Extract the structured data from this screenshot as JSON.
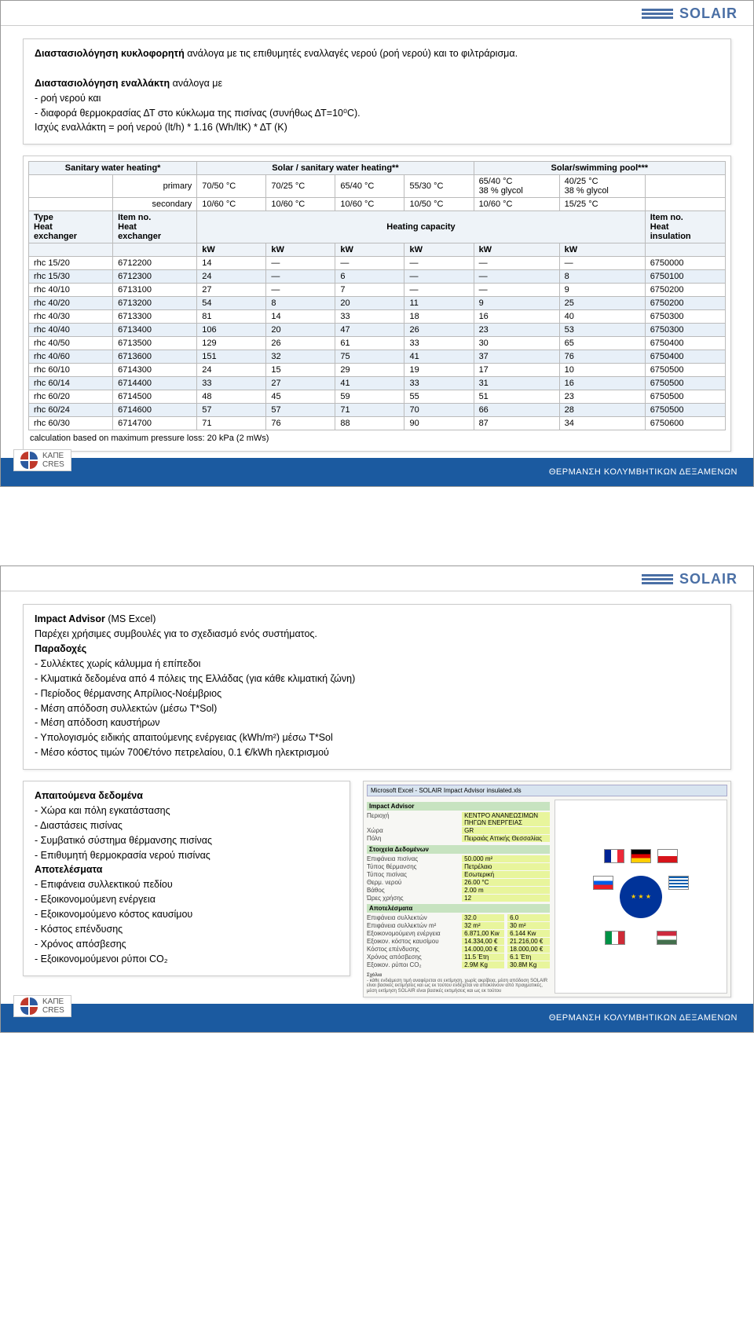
{
  "brand": {
    "name": "SOLAIR"
  },
  "footer": {
    "org_line1": "ΚΑΠΕ",
    "org_line2": "CRES",
    "title": "ΘΕΡΜΑΝΣΗ ΚΟΛΥΜΒΗΤΙΚΩΝ ΔΕΞΑΜΕΝΩΝ"
  },
  "slide1": {
    "box1": {
      "p1_a": "Διαστασιολόγηση κυκλοφορητή",
      "p1_b": " ανάλογα με τις επιθυμητές εναλλαγές νερού (ροή νερού) και το φιλτράρισμα.",
      "p2_a": "Διαστασιολόγηση εναλλάκτη",
      "p2_b": " ανάλογα με",
      "p3": "- ροή νερού και",
      "p4": "- διαφορά θερμοκρασίας ΔΤ στο κύκλωμα της πισίνας (συνήθως ΔΤ=10⁰C).",
      "p5": "Ισχύς εναλλάκτη = ροή νερού (lt/h) * 1.16 (Wh/ltK) * ΔΤ (K)"
    },
    "table": {
      "group1": "Sanitary water heating*",
      "group2": "Solar / sanitary water heating**",
      "group3": "Solar/swimming pool***",
      "row_primary": "primary",
      "row_secondary": "secondary",
      "col_head_type": "Type\nHeat\nexchanger",
      "col_head_item": "Item no.\nHeat\nexchanger",
      "col_head_capacity": "Heating capacity",
      "col_head_item_ins": "Item no.\nHeat\ninsulation",
      "kw": "kW",
      "primary_temps": [
        "70/50 °C",
        "70/25 °C",
        "65/40 °C",
        "55/30 °C",
        "65/40 °C\n38 % glycol",
        "40/25 °C\n38 % glycol"
      ],
      "secondary_temps": [
        "10/60 °C",
        "10/60 °C",
        "10/60 °C",
        "10/50 °C",
        "10/60 °C",
        "15/25 °C"
      ],
      "rows": [
        {
          "type": "rhc 15/20",
          "item": "6712200",
          "v": [
            "14",
            "—",
            "—",
            "—",
            "—",
            "—"
          ],
          "ins": "6750000",
          "alt": false
        },
        {
          "type": "rhc 15/30",
          "item": "6712300",
          "v": [
            "24",
            "—",
            "6",
            "—",
            "—",
            "8"
          ],
          "ins": "6750100",
          "alt": true
        },
        {
          "type": "rhc 40/10",
          "item": "6713100",
          "v": [
            "27",
            "—",
            "7",
            "—",
            "—",
            "9"
          ],
          "ins": "6750200",
          "alt": false
        },
        {
          "type": "rhc 40/20",
          "item": "6713200",
          "v": [
            "54",
            "8",
            "20",
            "11",
            "9",
            "25"
          ],
          "ins": "6750200",
          "alt": true
        },
        {
          "type": "rhc 40/30",
          "item": "6713300",
          "v": [
            "81",
            "14",
            "33",
            "18",
            "16",
            "40"
          ],
          "ins": "6750300",
          "alt": false
        },
        {
          "type": "rhc 40/40",
          "item": "6713400",
          "v": [
            "106",
            "20",
            "47",
            "26",
            "23",
            "53"
          ],
          "ins": "6750300",
          "alt": true
        },
        {
          "type": "rhc 40/50",
          "item": "6713500",
          "v": [
            "129",
            "26",
            "61",
            "33",
            "30",
            "65"
          ],
          "ins": "6750400",
          "alt": false
        },
        {
          "type": "rhc 40/60",
          "item": "6713600",
          "v": [
            "151",
            "32",
            "75",
            "41",
            "37",
            "76"
          ],
          "ins": "6750400",
          "alt": true
        },
        {
          "type": "rhc 60/10",
          "item": "6714300",
          "v": [
            "24",
            "15",
            "29",
            "19",
            "17",
            "10"
          ],
          "ins": "6750500",
          "alt": false
        },
        {
          "type": "rhc 60/14",
          "item": "6714400",
          "v": [
            "33",
            "27",
            "41",
            "33",
            "31",
            "16"
          ],
          "ins": "6750500",
          "alt": true
        },
        {
          "type": "rhc 60/20",
          "item": "6714500",
          "v": [
            "48",
            "45",
            "59",
            "55",
            "51",
            "23"
          ],
          "ins": "6750500",
          "alt": false
        },
        {
          "type": "rhc 60/24",
          "item": "6714600",
          "v": [
            "57",
            "57",
            "71",
            "70",
            "66",
            "28"
          ],
          "ins": "6750500",
          "alt": true
        },
        {
          "type": "rhc 60/30",
          "item": "6714700",
          "v": [
            "71",
            "76",
            "88",
            "90",
            "87",
            "34"
          ],
          "ins": "6750600",
          "alt": false
        }
      ],
      "note": "calculation based on maximum pressure loss: 20 kPa (2 mWs)"
    }
  },
  "slide2": {
    "box1": {
      "title_a": "Impact Advisor",
      "title_b": " (MS Excel)",
      "p1": "Παρέχει χρήσιμες συμβουλές για το σχεδιασμό ενός συστήματος.",
      "h2": "Παραδοχές",
      "items": [
        "- Συλλέκτες χωρίς κάλυμμα ή επίπεδοι",
        "- Κλιματικά δεδομένα από 4 πόλεις της Ελλάδας (για κάθε κλιματική ζώνη)",
        "- Περίοδος θέρμανσης Απρίλιος-Νοέμβριος",
        "- Μέση απόδοση συλλεκτών (μέσω T*Sol)",
        "- Μέση απόδοση καυστήρων",
        "- Υπολογισμός ειδικής απαιτούμενης ενέργειας (kWh/m²) μέσω T*Sol",
        "- Μέσο κόστος τιμών 700€/τόνο πετρελαίου, 0.1 €/kWh ηλεκτρισμού"
      ]
    },
    "box2": {
      "h1": "Απαιτούμενα δεδομένα",
      "req": [
        "- Χώρα και πόλη εγκατάστασης",
        "- Διαστάσεις πισίνας",
        "- Συμβατικό σύστημα θέρμανσης πισίνας",
        "- Επιθυμητή θερμοκρασία νερού πισίνας"
      ],
      "h2": "Αποτελέσματα",
      "res": [
        "- Επιφάνεια συλλεκτικού πεδίου",
        "- Εξοικονομούμενη ενέργεια",
        "- Εξοικονομούμενο κόστος καυσίμου",
        "- Κόστος επένδυσης",
        "- Χρόνος απόσβεσης",
        "- Εξοικονομούμενοι ρύποι CO₂"
      ]
    },
    "screenshot": {
      "toolbar": "Microsoft Excel - SOLAIR Impact Advisor insulated.xls",
      "section1": "Impact Advisor",
      "rows1": [
        {
          "lbl": "Περιοχή",
          "val": "ΚΕΝΤΡΟ ΑΝΑΝΕΩΣΙΜΩΝ ΠΗΓΩΝ ΕΝΕΡΓΕΙΑΣ"
        },
        {
          "lbl": "Χώρα",
          "val": "GR"
        },
        {
          "lbl": "Πόλη",
          "val": "Πειραιάς Αττικής Θεσσαλίας"
        },
        {
          "lbl": "",
          "val": ""
        }
      ],
      "section2": "Στοιχεία Δεδομένων",
      "rows2": [
        {
          "lbl": "Επιφάνεια πισίνας",
          "val": "50.000 m²"
        },
        {
          "lbl": "Τύπος θέρμανσης",
          "val": "Πετρέλαιο"
        },
        {
          "lbl": "Τύπος πισίνας",
          "val": "Εσωτερική"
        },
        {
          "lbl": "Θερμ. νερού",
          "val": "26.00 °C"
        },
        {
          "lbl": "Βάθος",
          "val": "2.00 m"
        },
        {
          "lbl": "Ώρες χρήσης",
          "val": "12"
        }
      ],
      "section3": "Αποτελέσματα",
      "rows3": [
        {
          "lbl": "Επιφάνεια συλλεκτών",
          "val": "32.0",
          "val2": "6.0"
        },
        {
          "lbl": "Επιφάνεια συλλεκτών m²",
          "val": "32 m²",
          "val2": "30 m²"
        },
        {
          "lbl": "Εξοικονομούμενη ενέργεια",
          "val": "6.871,00 Kw",
          "val2": "6.144 Kw"
        },
        {
          "lbl": "Εξοικον. κόστος καυσίμου",
          "val": "14.334,00 €",
          "val2": "21.216,00 €"
        },
        {
          "lbl": "Κόστος επένδυσης",
          "val": "14.000,00 €",
          "val2": "18.000,00 €"
        },
        {
          "lbl": "Χρόνος απόσβεσης",
          "val": "11.5 Έτη",
          "val2": "6.1 Έτη"
        },
        {
          "lbl": "Εξοικον. ρύποι CO₂",
          "val": "2.9M Kg",
          "val2": "30.8M Kg"
        }
      ],
      "notes_title": "Σχόλια",
      "notes": "- κάθε ενδιάμεση τιμή αναφέρεται σε εκτίμηση, χωρίς ακρίβεια, μέση απόδοση SOLAIR είναι βασικές εκτιμήσεις και ως εκ τούτου ενδέχεται να αποκλίνουν από πραγματικές, μέση εκτίμηση SOLAIR είναι βασικές εκτιμήσεις και ως εκ τούτου"
    }
  },
  "colors": {
    "brand_blue": "#4a6fa5",
    "footer_blue": "#1b5aa0",
    "table_header": "#eef3f8",
    "table_alt": "#e8f0f8",
    "ss_section": "#c7e3c0",
    "ss_value": "#e8f59c",
    "border": "#cccccc"
  },
  "flags": {
    "france": {
      "c1": "#002395",
      "c2": "#ffffff",
      "c3": "#ed2939"
    },
    "germany": {
      "c1": "#000000",
      "c2": "#dd0000",
      "c3": "#ffce00"
    },
    "czech": {
      "c1": "#ffffff",
      "c2": "#d7141a",
      "c3": "#11457e"
    },
    "slovenia": {
      "c1": "#ffffff",
      "c2": "#005ce5",
      "c3": "#ed1c24"
    },
    "greece": {
      "c1": "#0d5eaf",
      "c2": "#ffffff"
    },
    "italy": {
      "c1": "#009246",
      "c2": "#ffffff",
      "c3": "#ce2b37"
    },
    "hungary": {
      "c1": "#cd2a3e",
      "c2": "#ffffff",
      "c3": "#436f4d"
    },
    "eu": {
      "bg": "#003399",
      "stars": "#ffcc00"
    }
  }
}
